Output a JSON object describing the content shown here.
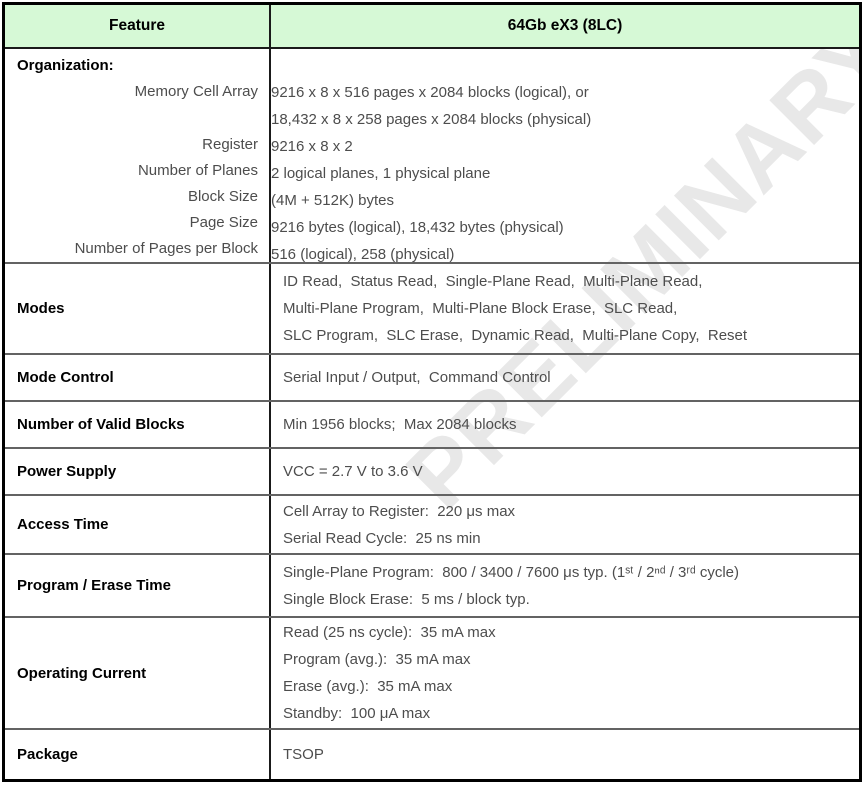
{
  "watermark": {
    "text": "PRELIMINARY",
    "color": "#e8e8e8"
  },
  "colors": {
    "header_bg": "#d6f9d6",
    "outer_border": "#000000",
    "inner_line": "#636363",
    "column_divider": "#1a1a1a",
    "label_text": "#000000",
    "value_text": "#4d4d4d"
  },
  "header": {
    "feature": "Feature",
    "device": "64Gb eX3 (8LC)"
  },
  "rows": [
    {
      "feature": "Organization:",
      "sub_rows": [
        {
          "label": "Memory Cell Array",
          "value": "9216 x 8 x 516 pages x 2084 blocks (logical), or"
        },
        {
          "label": "",
          "value": "18,432 x 8 x 258 pages x 2084 blocks (physical)"
        },
        {
          "label": "Register",
          "value": "9216 x 8 x 2"
        },
        {
          "label": "Number of Planes",
          "value": "2 logical planes, 1 physical plane"
        },
        {
          "label": "Block Size",
          "value": "(4M + 512K) bytes"
        },
        {
          "label": "Page Size",
          "value": "9216 bytes (logical), 18,432 bytes (physical)"
        },
        {
          "label": "Number of Pages per Block",
          "value": "516 (logical), 258 (physical)"
        }
      ]
    },
    {
      "feature": "Modes",
      "lines": [
        "ID Read,  Status Read,  Single-Plane Read,  Multi-Plane Read,",
        "Multi-Plane Program,  Multi-Plane Block Erase,  SLC Read,",
        "SLC Program,  SLC Erase,  Dynamic Read,  Multi-Plane Copy,  Reset"
      ]
    },
    {
      "feature": "Mode Control",
      "lines": [
        "Serial Input / Output,  Command Control"
      ]
    },
    {
      "feature": "Number of Valid Blocks",
      "lines": [
        "Min 1956 blocks;  Max 2084 blocks"
      ]
    },
    {
      "feature": "Power Supply",
      "lines": [
        "VCC = 2.7 V to 3.6 V"
      ]
    },
    {
      "feature": "Access Time",
      "lines": [
        "Cell Array to Register:  220 μs max",
        "Serial Read Cycle:  25 ns min"
      ]
    },
    {
      "feature": "Program / Erase Time",
      "lines": [
        "Single-Plane Program:  800 / 3400 / 7600 μs typ. (1ˢᵗ / 2ⁿᵈ / 3ʳᵈ cycle)",
        "Single Block Erase:  5 ms / block typ."
      ]
    },
    {
      "feature": "Operating Current",
      "lines": [
        "Read (25 ns cycle):  35 mA max",
        "Program (avg.):  35 mA max",
        "Erase (avg.):  35 mA max",
        "Standby:  100 μA max"
      ]
    },
    {
      "feature": "Package",
      "lines": [
        "TSOP"
      ]
    }
  ]
}
